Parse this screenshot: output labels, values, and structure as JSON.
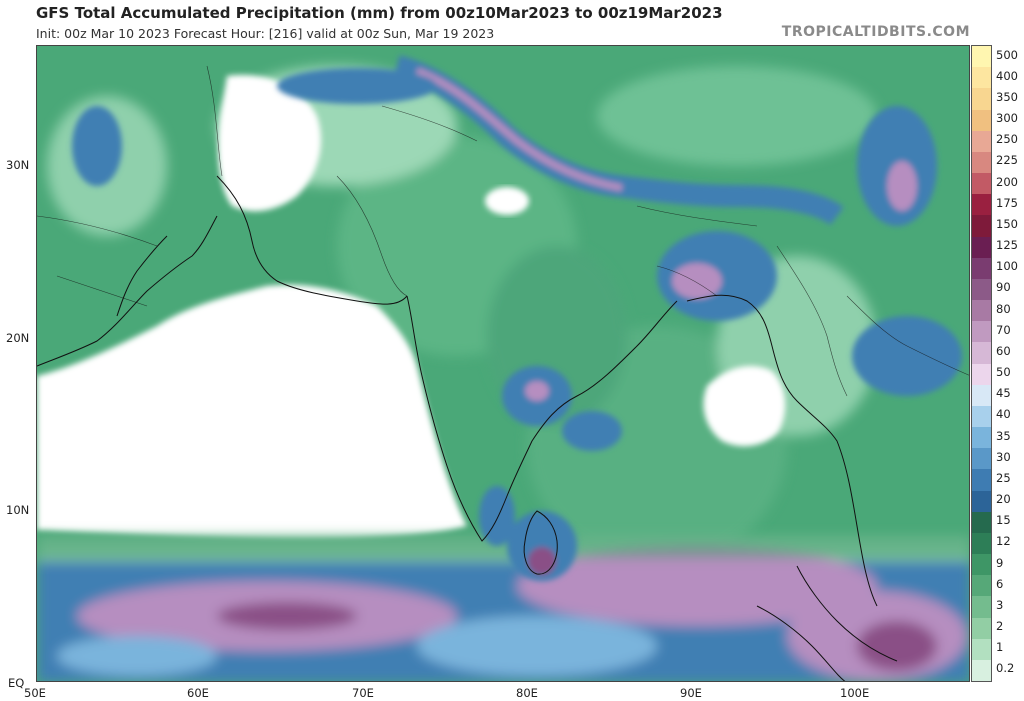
{
  "header": {
    "title": "GFS Total Accumulated Precipitation (mm) from 00z10Mar2023 to 00z19Mar2023",
    "subtitle": "Init: 00z Mar 10 2023   Forecast Hour: [216]   valid at 00z Sun, Mar 19 2023",
    "brand": "TROPICALTIDBITS.COM"
  },
  "map": {
    "lat_labels": [
      "30N",
      "20N",
      "10N",
      "EQ"
    ],
    "lon_labels": [
      "50E",
      "60E",
      "70E",
      "80E",
      "90E",
      "100E"
    ],
    "lon_range": [
      50,
      107
    ],
    "lat_range": [
      0,
      37
    ],
    "colors": {
      "dry": "#ffffff",
      "light": "#a8dcc0",
      "moderate": "#4aa878",
      "heavy": "#2f8a5f",
      "blue": "#3f7fb3",
      "purple": "#b68ec0",
      "magenta": "#8a4f86"
    }
  },
  "colorbar": {
    "levels": [
      "500",
      "400",
      "350",
      "300",
      "250",
      "225",
      "200",
      "175",
      "150",
      "125",
      "100",
      "90",
      "80",
      "70",
      "60",
      "50",
      "45",
      "40",
      "35",
      "30",
      "25",
      "20",
      "15",
      "12",
      "9",
      "6",
      "3",
      "2",
      "1",
      "0.2"
    ],
    "colors": [
      "#fff6b0",
      "#fde6a0",
      "#f8d690",
      "#f0c080",
      "#e8a895",
      "#d88880",
      "#c25a65",
      "#9a2040",
      "#7e1a3a",
      "#6a1e52",
      "#7a3c70",
      "#8c5a88",
      "#a87aa4",
      "#c09ac0",
      "#d6b8d6",
      "#ecd6ec",
      "#d8e8f6",
      "#a8d0ec",
      "#7ab4dc",
      "#5a98c8",
      "#3e7cb2",
      "#2c6498",
      "#256a4e",
      "#2d7e57",
      "#3e9666",
      "#56a878",
      "#74bc8e",
      "#92cea4",
      "#b2e0c0",
      "#d8f0e0"
    ]
  }
}
